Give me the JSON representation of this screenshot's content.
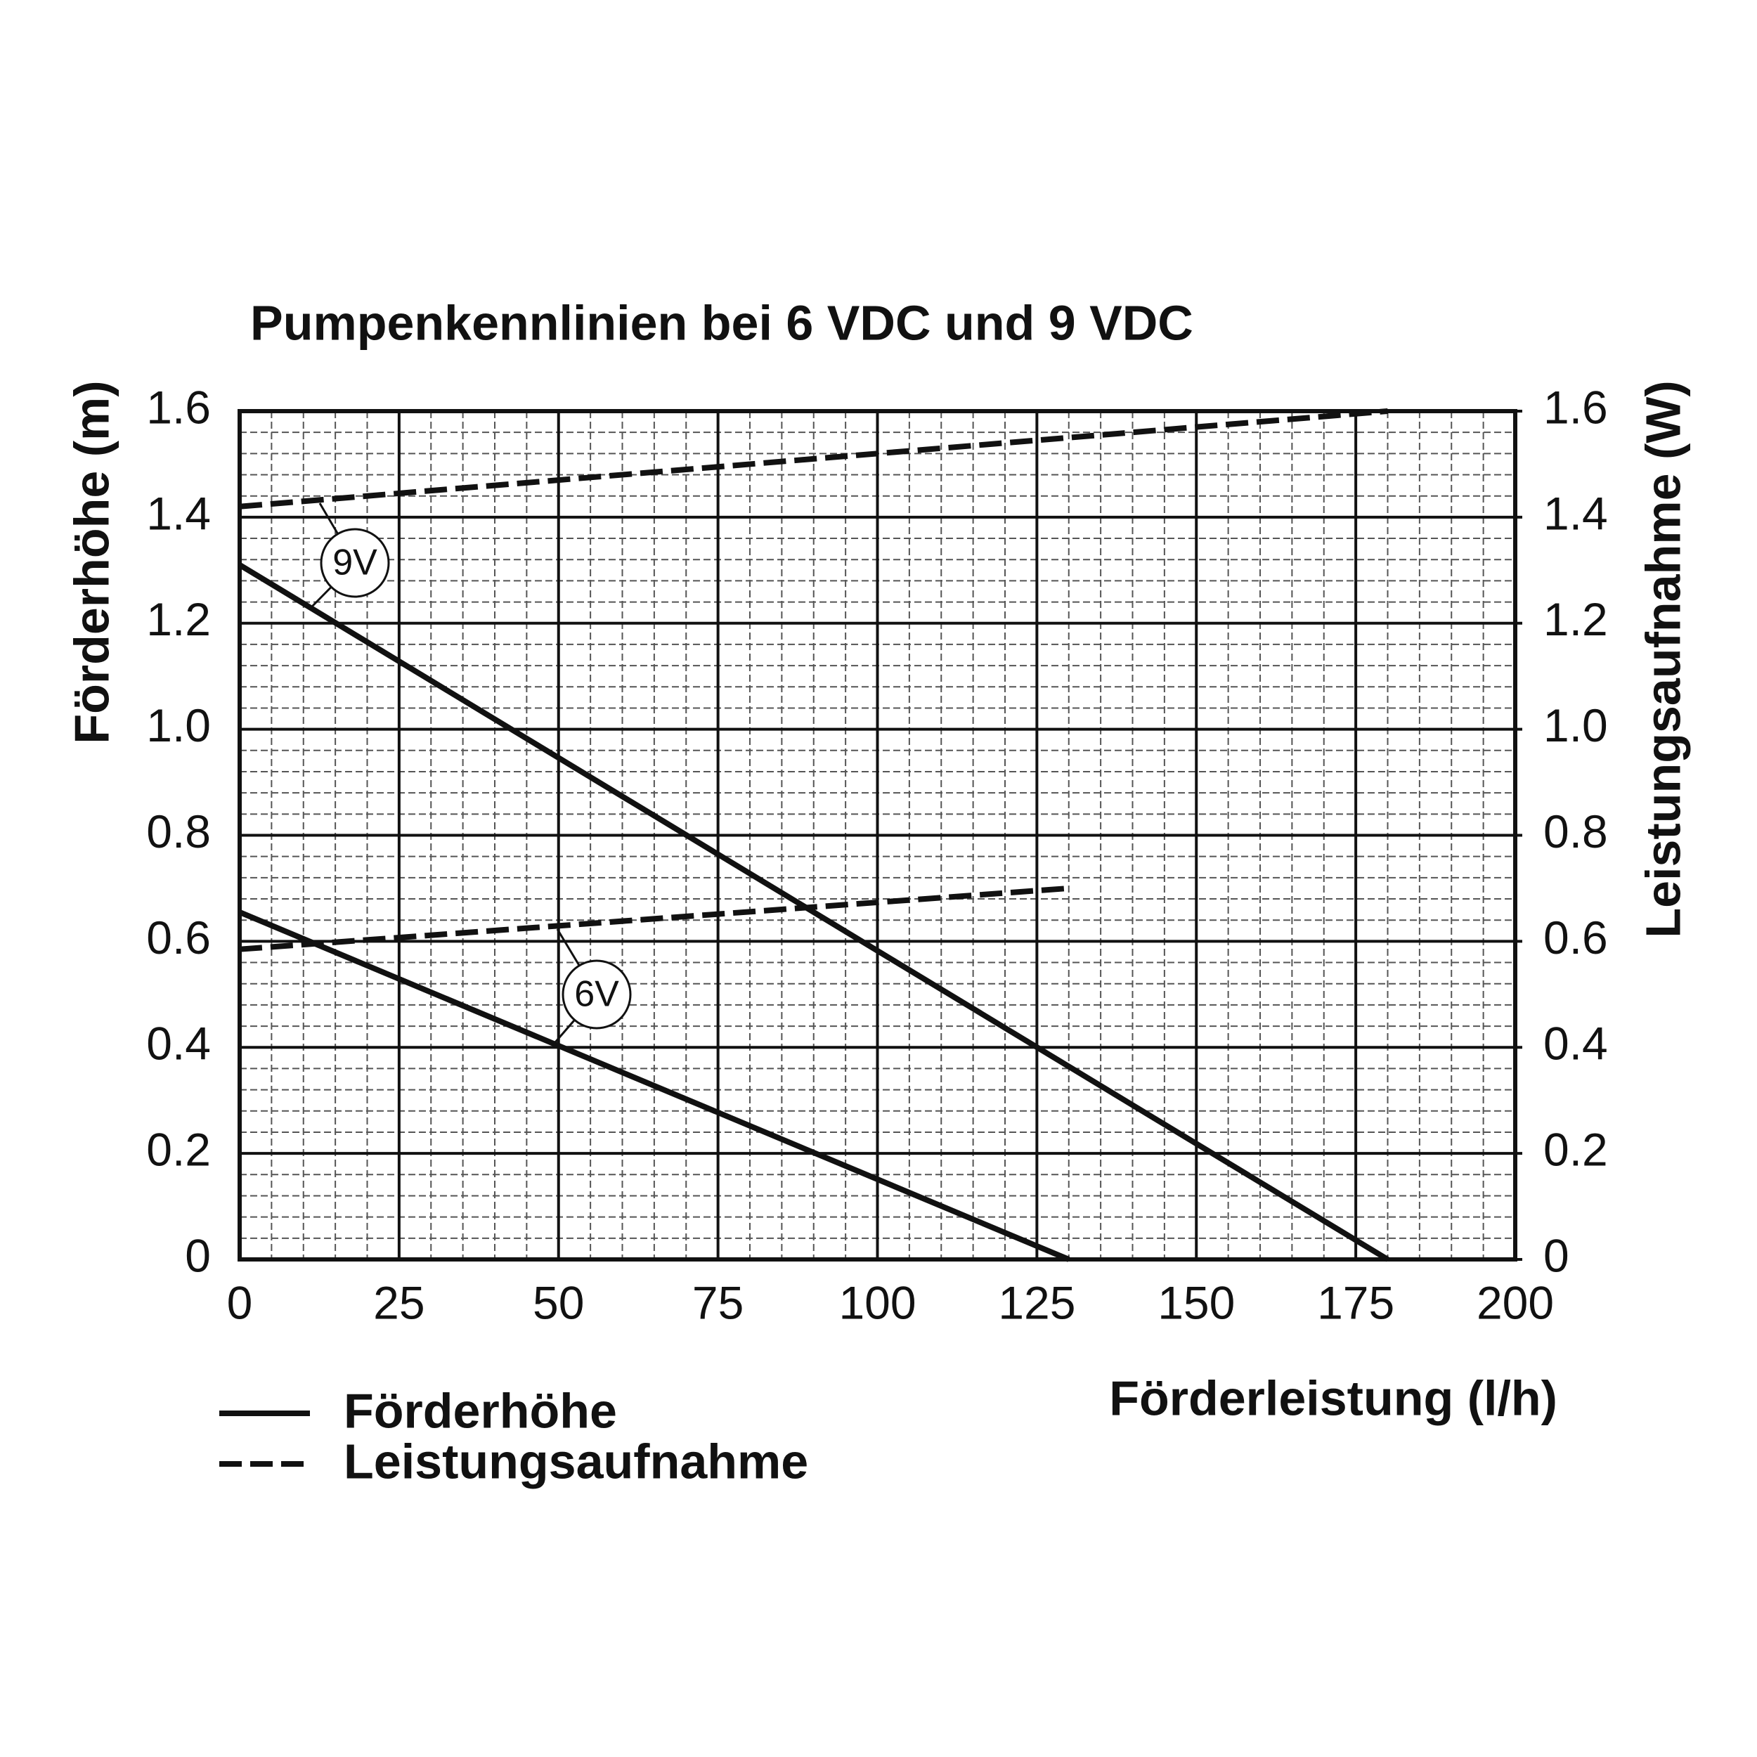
{
  "chart_data": {
    "type": "line",
    "title": "Pumpenkennlinien bei 6 VDC und 9 VDC",
    "x_label": "Förderleistung (l/h)",
    "y_label": "Förderhöhe (m)",
    "y2_label": "Leistungsaufnahme (W)",
    "xlim": [
      0,
      200
    ],
    "xticks": [
      0,
      25,
      50,
      75,
      100,
      125,
      150,
      175,
      200
    ],
    "ylim": [
      0,
      1.6
    ],
    "yticks": [
      0,
      0.2,
      0.4,
      0.6,
      0.8,
      {
        "value": 1,
        "label": "1.0"
      },
      1.2,
      1.4,
      1.6
    ],
    "y2lim": [
      0,
      1.6
    ],
    "y2ticks": [
      0,
      0.2,
      0.4,
      0.6,
      0.8,
      {
        "value": 1,
        "label": "1.0"
      },
      1.2,
      1.4,
      1.6
    ],
    "grid": true,
    "minor_grid": true,
    "legend": [
      {
        "label": "Förderhöhe",
        "style": "solid"
      },
      {
        "label": "Leistungsaufnahme",
        "style": "dashed"
      }
    ],
    "series": [
      {
        "color": "#111111",
        "style": "solid",
        "x": [
          0,
          180
        ],
        "values": [
          1.31,
          0
        ]
      },
      {
        "color": "#111111",
        "style": "solid",
        "x": [
          0,
          130
        ],
        "values": [
          0.655,
          0
        ]
      },
      {
        "color": "#111111",
        "style": "dashed",
        "axis": "y2",
        "x": [
          0,
          180
        ],
        "values": [
          1.42,
          1.6
        ]
      },
      {
        "color": "#111111",
        "style": "dashed",
        "axis": "y2",
        "x": [
          0,
          130
        ],
        "values": [
          0.585,
          0.7
        ]
      }
    ],
    "annotations": [
      "9V",
      "6V"
    ]
  }
}
